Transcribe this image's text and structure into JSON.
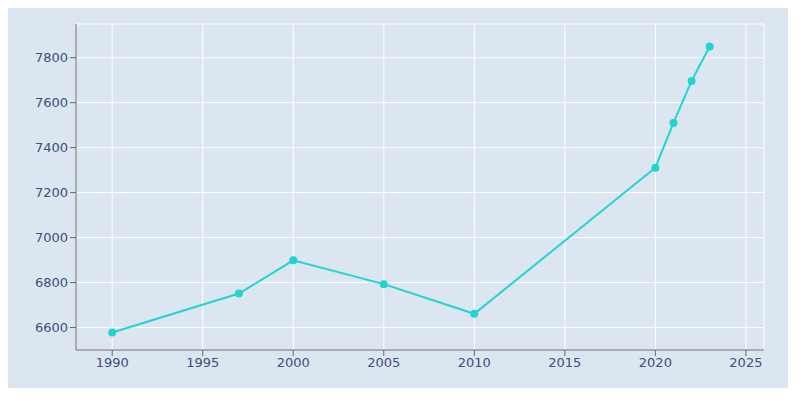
{
  "chart_data": {
    "type": "line",
    "x": [
      1990,
      1997,
      2000,
      2005,
      2010,
      2020,
      2021,
      2022,
      2023
    ],
    "values": [
      6578,
      6751,
      6899,
      6793,
      6661,
      7311,
      7510,
      7697,
      7850
    ],
    "color": "#22d3d3",
    "marker": "o",
    "xlim": [
      1988,
      2026
    ],
    "ylim": [
      6500,
      7950
    ],
    "xticks": [
      1990,
      1995,
      2000,
      2005,
      2010,
      2015,
      2020,
      2025
    ],
    "yticks": [
      6600,
      6800,
      7000,
      7200,
      7400,
      7600,
      7800
    ],
    "grid": true
  }
}
